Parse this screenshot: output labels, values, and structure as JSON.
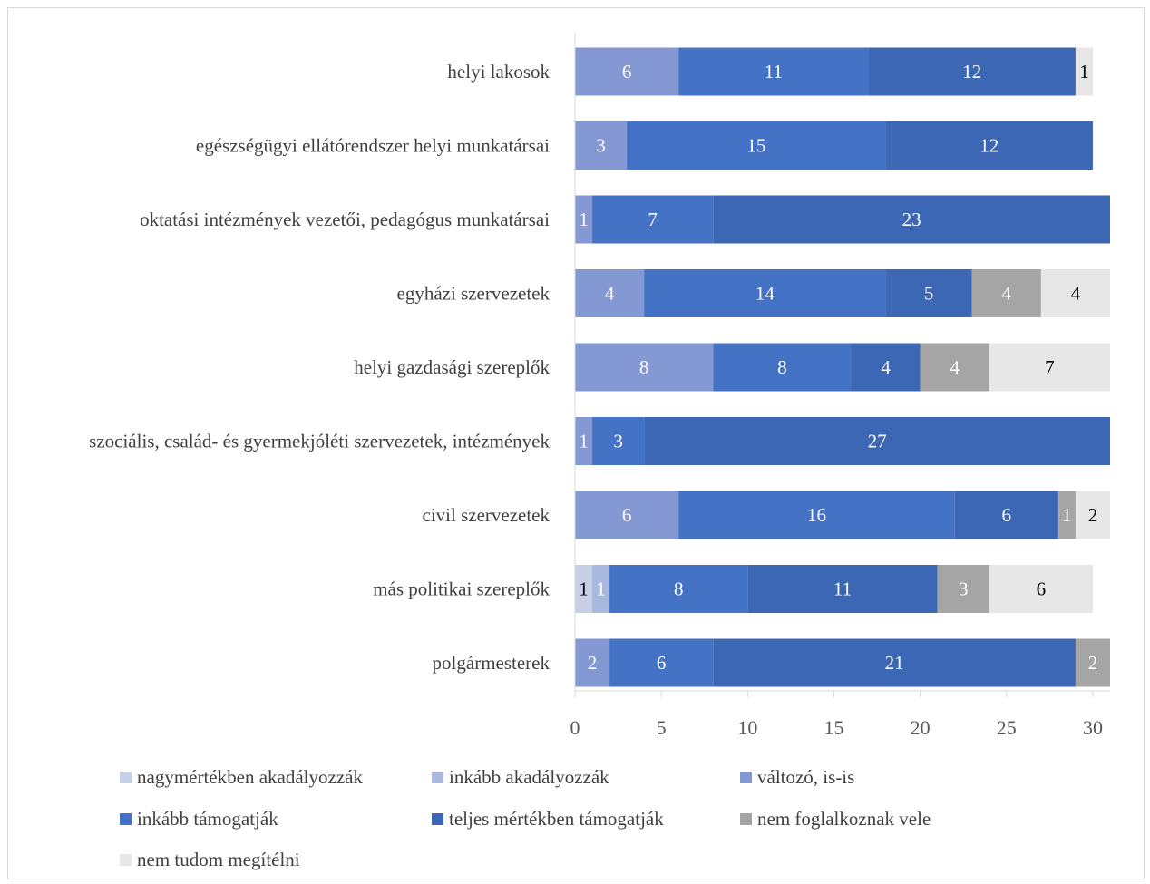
{
  "chart_data": {
    "type": "bar",
    "orientation": "horizontal",
    "stacked": true,
    "title": "",
    "xlabel": "",
    "ylabel": "",
    "xlim": [
      0,
      31
    ],
    "x_ticks": [
      0,
      5,
      10,
      15,
      20,
      25,
      30
    ],
    "grid": false,
    "legend_position": "bottom",
    "categories": [
      "helyi lakosok",
      "egészségügyi ellátórendszer helyi munkatársai",
      "oktatási intézmények vezetői, pedagógus munkatársai",
      "egyházi szervezetek",
      "helyi gazdasági szereplők",
      "szociális, család- és gyermekjóléti szervezetek, intézmények",
      "civil szervezetek",
      "más politikai szereplők",
      "polgármesterek"
    ],
    "series": [
      {
        "name": "nagymértékben akadályozzák",
        "color": "#c5d0e6",
        "label_color": "#000000",
        "values": [
          0,
          0,
          0,
          0,
          0,
          0,
          0,
          1,
          0
        ]
      },
      {
        "name": "inkább akadályozzák",
        "color": "#a9b8df",
        "label_color": "#ffffff",
        "values": [
          0,
          0,
          0,
          0,
          0,
          0,
          0,
          1,
          0
        ]
      },
      {
        "name": "változó, is-is",
        "color": "#8499d4",
        "label_color": "#ffffff",
        "values": [
          6,
          3,
          1,
          4,
          8,
          1,
          6,
          0,
          2
        ]
      },
      {
        "name": "inkább támogatják",
        "color": "#4472c4",
        "label_color": "#ffffff",
        "values": [
          11,
          15,
          7,
          14,
          8,
          3,
          16,
          8,
          6
        ]
      },
      {
        "name": "teljes mértékben támogatják",
        "color": "#3c67b4",
        "label_color": "#ffffff",
        "values": [
          12,
          12,
          23,
          5,
          4,
          27,
          6,
          11,
          21
        ]
      },
      {
        "name": "nem foglalkoznak vele",
        "color": "#a5a5a5",
        "label_color": "#ffffff",
        "values": [
          0,
          0,
          0,
          4,
          4,
          0,
          1,
          3,
          2
        ]
      },
      {
        "name": "nem tudom megítélni",
        "color": "#e7e7e7",
        "label_color": "#000000",
        "values": [
          1,
          0,
          0,
          4,
          7,
          0,
          2,
          6,
          0
        ]
      }
    ]
  }
}
